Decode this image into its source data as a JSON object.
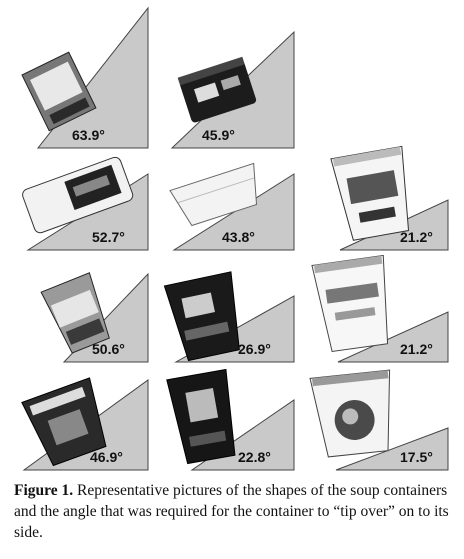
{
  "panels": [
    {
      "angle": "63.9°",
      "container": "cup-stack"
    },
    {
      "angle": "45.9°",
      "container": "black-tub"
    },
    {
      "angle": "",
      "container": "none"
    },
    {
      "angle": "52.7°",
      "container": "bowl"
    },
    {
      "angle": "43.8°",
      "container": "white-bowl"
    },
    {
      "angle": "21.2°",
      "container": "tall-cup"
    },
    {
      "angle": "50.6°",
      "container": "small-cup"
    },
    {
      "angle": "26.9°",
      "container": "dark-cup"
    },
    {
      "angle": "21.2°",
      "container": "white-cup"
    },
    {
      "angle": "46.9°",
      "container": "wide-cup"
    },
    {
      "angle": "22.8°",
      "container": "tall-dark-cup"
    },
    {
      "angle": "17.5°",
      "container": "bowl-cup"
    }
  ],
  "caption": {
    "label": "Figure 1.",
    "text": " Representative pictures of the shapes of the soup containers and the angle that was required for the container to “tip over” on to its side."
  }
}
